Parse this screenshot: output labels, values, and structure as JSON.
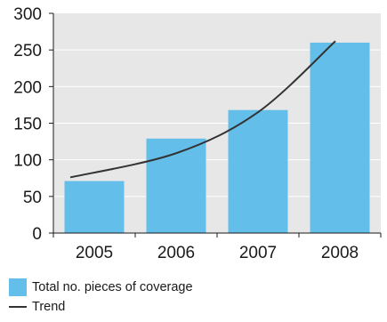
{
  "chart_data": {
    "type": "bar",
    "categories": [
      "2005",
      "2006",
      "2007",
      "2008"
    ],
    "series": [
      {
        "name": "Total no. pieces of coverage",
        "type": "bar",
        "values": [
          71,
          129,
          168,
          260
        ]
      },
      {
        "name": "Trend",
        "type": "line",
        "values": [
          76,
          109,
          165,
          262
        ]
      }
    ],
    "ylim": [
      0,
      300
    ],
    "yticks": [
      0,
      50,
      100,
      150,
      200,
      250,
      300
    ],
    "grid": true,
    "legend_position": "bottom-left",
    "colors": {
      "bar": "#63bfe9",
      "trend": "#333333",
      "plot_bg": "#e7e7e8",
      "grid": "#ffffff"
    }
  }
}
